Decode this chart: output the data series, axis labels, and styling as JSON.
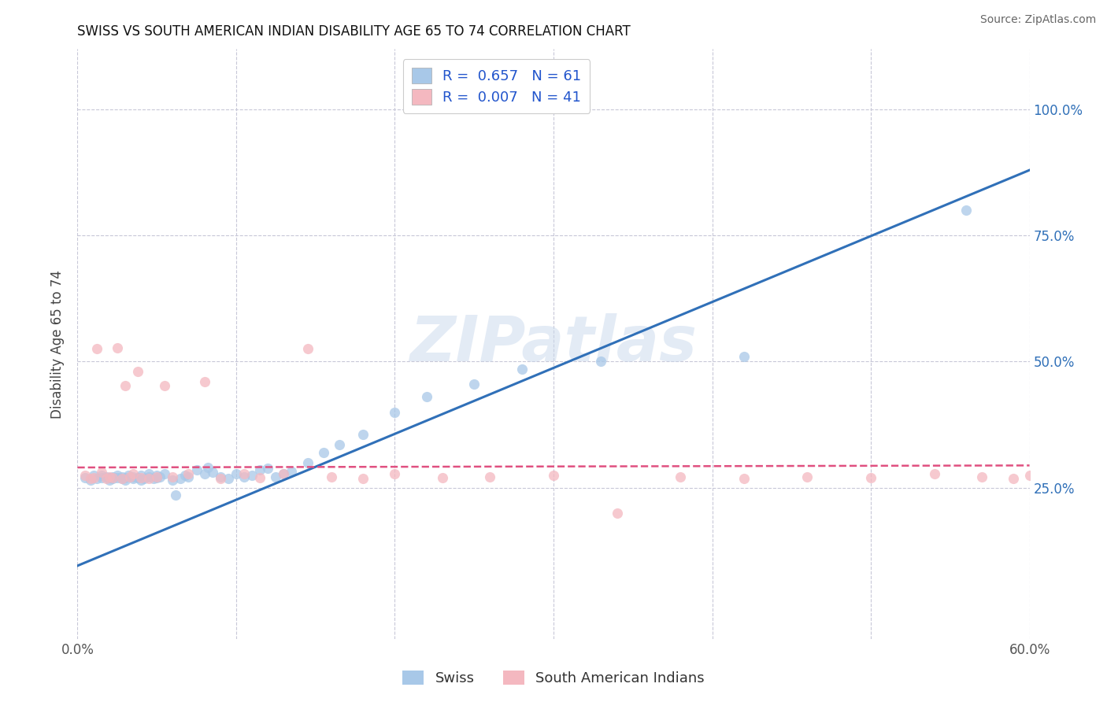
{
  "title": "SWISS VS SOUTH AMERICAN INDIAN DISABILITY AGE 65 TO 74 CORRELATION CHART",
  "source": "Source: ZipAtlas.com",
  "ylabel": "Disability Age 65 to 74",
  "xmin": 0.0,
  "xmax": 0.6,
  "ymin": -0.05,
  "ymax": 1.12,
  "yticks": [
    0.25,
    0.5,
    0.75,
    1.0
  ],
  "ytick_labels": [
    "25.0%",
    "50.0%",
    "75.0%",
    "100.0%"
  ],
  "swiss_R": 0.657,
  "swiss_N": 61,
  "sai_R": 0.007,
  "sai_N": 41,
  "swiss_color": "#a8c8e8",
  "sai_color": "#f4b8c0",
  "swiss_line_color": "#3070b8",
  "sai_line_color": "#e05080",
  "background_color": "#ffffff",
  "grid_color": "#c8c8d8",
  "legend_labels": [
    "Swiss",
    "South American Indians"
  ],
  "watermark": "ZIPatlas",
  "swiss_scatter_x": [
    0.005,
    0.008,
    0.01,
    0.012,
    0.015,
    0.015,
    0.018,
    0.02,
    0.02,
    0.022,
    0.022,
    0.025,
    0.025,
    0.028,
    0.028,
    0.03,
    0.03,
    0.032,
    0.035,
    0.035,
    0.038,
    0.04,
    0.04,
    0.042,
    0.045,
    0.045,
    0.048,
    0.05,
    0.05,
    0.052,
    0.055,
    0.06,
    0.062,
    0.065,
    0.068,
    0.07,
    0.075,
    0.08,
    0.082,
    0.085,
    0.09,
    0.095,
    0.1,
    0.105,
    0.11,
    0.115,
    0.12,
    0.125,
    0.13,
    0.135,
    0.145,
    0.155,
    0.165,
    0.18,
    0.2,
    0.22,
    0.25,
    0.28,
    0.33,
    0.42,
    0.56
  ],
  "swiss_scatter_y": [
    0.27,
    0.265,
    0.275,
    0.268,
    0.27,
    0.275,
    0.272,
    0.265,
    0.27,
    0.268,
    0.272,
    0.27,
    0.275,
    0.268,
    0.272,
    0.265,
    0.27,
    0.275,
    0.268,
    0.272,
    0.27,
    0.265,
    0.275,
    0.268,
    0.272,
    0.278,
    0.268,
    0.27,
    0.275,
    0.272,
    0.278,
    0.265,
    0.235,
    0.268,
    0.275,
    0.272,
    0.285,
    0.278,
    0.29,
    0.28,
    0.272,
    0.268,
    0.278,
    0.272,
    0.275,
    0.285,
    0.288,
    0.272,
    0.278,
    0.282,
    0.3,
    0.32,
    0.335,
    0.355,
    0.4,
    0.43,
    0.455,
    0.485,
    0.5,
    0.51,
    0.8
  ],
  "sai_scatter_x": [
    0.005,
    0.008,
    0.01,
    0.012,
    0.015,
    0.018,
    0.02,
    0.022,
    0.025,
    0.028,
    0.03,
    0.033,
    0.035,
    0.038,
    0.04,
    0.045,
    0.05,
    0.055,
    0.06,
    0.07,
    0.08,
    0.09,
    0.105,
    0.115,
    0.13,
    0.145,
    0.16,
    0.18,
    0.2,
    0.23,
    0.26,
    0.3,
    0.34,
    0.38,
    0.42,
    0.46,
    0.5,
    0.54,
    0.57,
    0.59,
    0.6
  ],
  "sai_scatter_y": [
    0.275,
    0.268,
    0.27,
    0.525,
    0.28,
    0.268,
    0.272,
    0.27,
    0.528,
    0.268,
    0.452,
    0.272,
    0.278,
    0.48,
    0.27,
    0.268,
    0.272,
    0.452,
    0.272,
    0.278,
    0.46,
    0.268,
    0.278,
    0.27,
    0.278,
    0.525,
    0.272,
    0.268,
    0.278,
    0.27,
    0.272,
    0.275,
    0.2,
    0.272,
    0.268,
    0.272,
    0.27,
    0.278,
    0.272,
    0.268,
    0.275
  ],
  "swiss_regline_x": [
    0.0,
    0.6
  ],
  "swiss_regline_y": [
    0.095,
    0.88
  ],
  "sai_regline_x": [
    0.0,
    0.6
  ],
  "sai_regline_y": [
    0.29,
    0.294
  ]
}
